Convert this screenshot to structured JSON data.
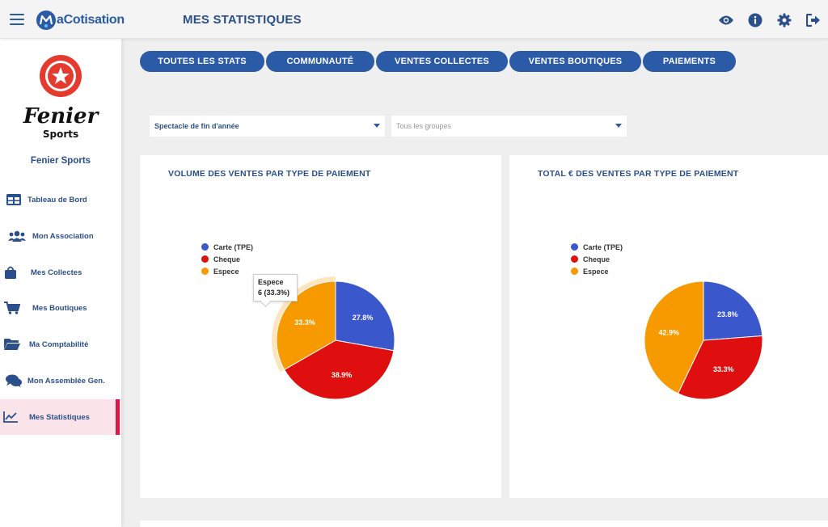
{
  "header": {
    "logo_text": "aCotisation",
    "page_title": "MES STATISTIQUES"
  },
  "sidebar": {
    "org_logo_text": "Fenier",
    "org_logo_sub": "Sports",
    "org_name": "Fenier Sports",
    "items": [
      {
        "label": "Tableau de Bord",
        "icon": "dashboard-icon"
      },
      {
        "label": "Mon Association",
        "icon": "users-icon"
      },
      {
        "label": "Mes Collectes",
        "icon": "shopping-bag-icon"
      },
      {
        "label": "Mes Boutiques",
        "icon": "cart-icon"
      },
      {
        "label": "Ma Comptabilité",
        "icon": "folder-icon"
      },
      {
        "label": "Mon Assemblée Gen.",
        "icon": "comments-icon"
      },
      {
        "label": "Mes Statistiques",
        "icon": "chart-line-icon",
        "active": true
      }
    ]
  },
  "tabs": [
    "TOUTES LES STATS",
    "COMMUNAUTÉ",
    "VENTES COLLECTES",
    "VENTES BOUTIQUES",
    "PAIEMENTS"
  ],
  "filters": {
    "event_select": "Spectacle de fin d'année",
    "group_select": "Tous les groupes"
  },
  "colors": {
    "primary": "#2b5aa6",
    "carte": "#3a57cc",
    "cheque": "#e00f0f",
    "espece": "#f79a00",
    "active": "#d9184e"
  },
  "chart_data": [
    {
      "type": "pie",
      "title": "VOLUME DES VENTES PAR TYPE DE PAIEMENT",
      "legend": [
        "Carte (TPE)",
        "Cheque",
        "Espece"
      ],
      "labels": [
        "Carte (TPE)",
        "Cheque",
        "Espece"
      ],
      "values": [
        27.8,
        38.9,
        33.3
      ],
      "value_labels": [
        "27.8%",
        "38.9%",
        "33.3%"
      ],
      "tooltip": {
        "title": "Espece",
        "text": "6 (33.3%)"
      },
      "legend_position": "top-left"
    },
    {
      "type": "pie",
      "title": "TOTAL € DES VENTES PAR TYPE DE PAIEMENT",
      "legend": [
        "Carte (TPE)",
        "Cheque",
        "Espece"
      ],
      "labels": [
        "Carte (TPE)",
        "Cheque",
        "Espece"
      ],
      "values": [
        23.8,
        33.3,
        42.9
      ],
      "value_labels": [
        "23.8%",
        "33.3%",
        "42.9%"
      ],
      "legend_position": "top-left"
    }
  ]
}
